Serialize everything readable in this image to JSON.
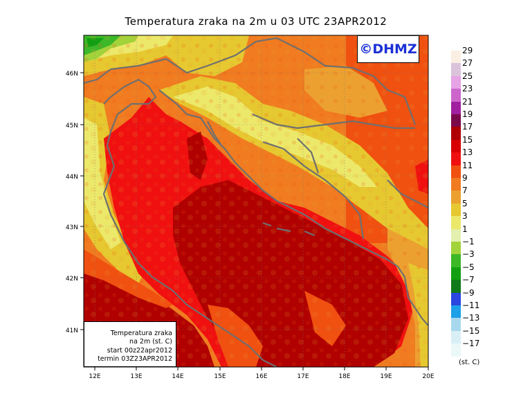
{
  "title": "Temperatura zraka na 2m u 03 UTC 23APR2012",
  "logo": "©DHMZ",
  "info": {
    "line1": "Temperatura zraka",
    "line2": "na 2m (st. C)",
    "line3": "start 00z22apr2012",
    "line4": "termin 03Z23APR2012"
  },
  "axes": {
    "lon_labels": [
      "12E",
      "13E",
      "14E",
      "15E",
      "16E",
      "17E",
      "18E",
      "19E",
      "20E"
    ],
    "lat_labels": [
      "46N",
      "45N",
      "44N",
      "43N",
      "42N",
      "41N"
    ]
  },
  "legend": {
    "units": "(st. C)",
    "bins": [
      {
        "label": "29",
        "color": "#fbeee3"
      },
      {
        "label": "27",
        "color": "#dcc3dc"
      },
      {
        "label": "25",
        "color": "#e6a3e6"
      },
      {
        "label": "23",
        "color": "#cc66cc"
      },
      {
        "label": "21",
        "color": "#a020a0"
      },
      {
        "label": "19",
        "color": "#7a0a4a"
      },
      {
        "label": "17",
        "color": "#b00000"
      },
      {
        "label": "15",
        "color": "#d80000"
      },
      {
        "label": "13",
        "color": "#f01010"
      },
      {
        "label": "11",
        "color": "#f05010"
      },
      {
        "label": "9",
        "color": "#f07b20"
      },
      {
        "label": "7",
        "color": "#eca030"
      },
      {
        "label": "5",
        "color": "#e6c830"
      },
      {
        "label": "3",
        "color": "#ece86a"
      },
      {
        "label": "1",
        "color": "#e3f0b0"
      },
      {
        "label": "−1",
        "color": "#a3d33a"
      },
      {
        "label": "−3",
        "color": "#3cb829"
      },
      {
        "label": "−5",
        "color": "#12a012"
      },
      {
        "label": "−7",
        "color": "#117a1a"
      },
      {
        "label": "−9",
        "color": "#2a45e0"
      },
      {
        "label": "−11",
        "color": "#1ca0e8"
      },
      {
        "label": "−13",
        "color": "#a8d8ee"
      },
      {
        "label": "−15",
        "color": "#d8eff5"
      },
      {
        "label": "−17",
        "color": "#ecf8f8"
      }
    ]
  }
}
